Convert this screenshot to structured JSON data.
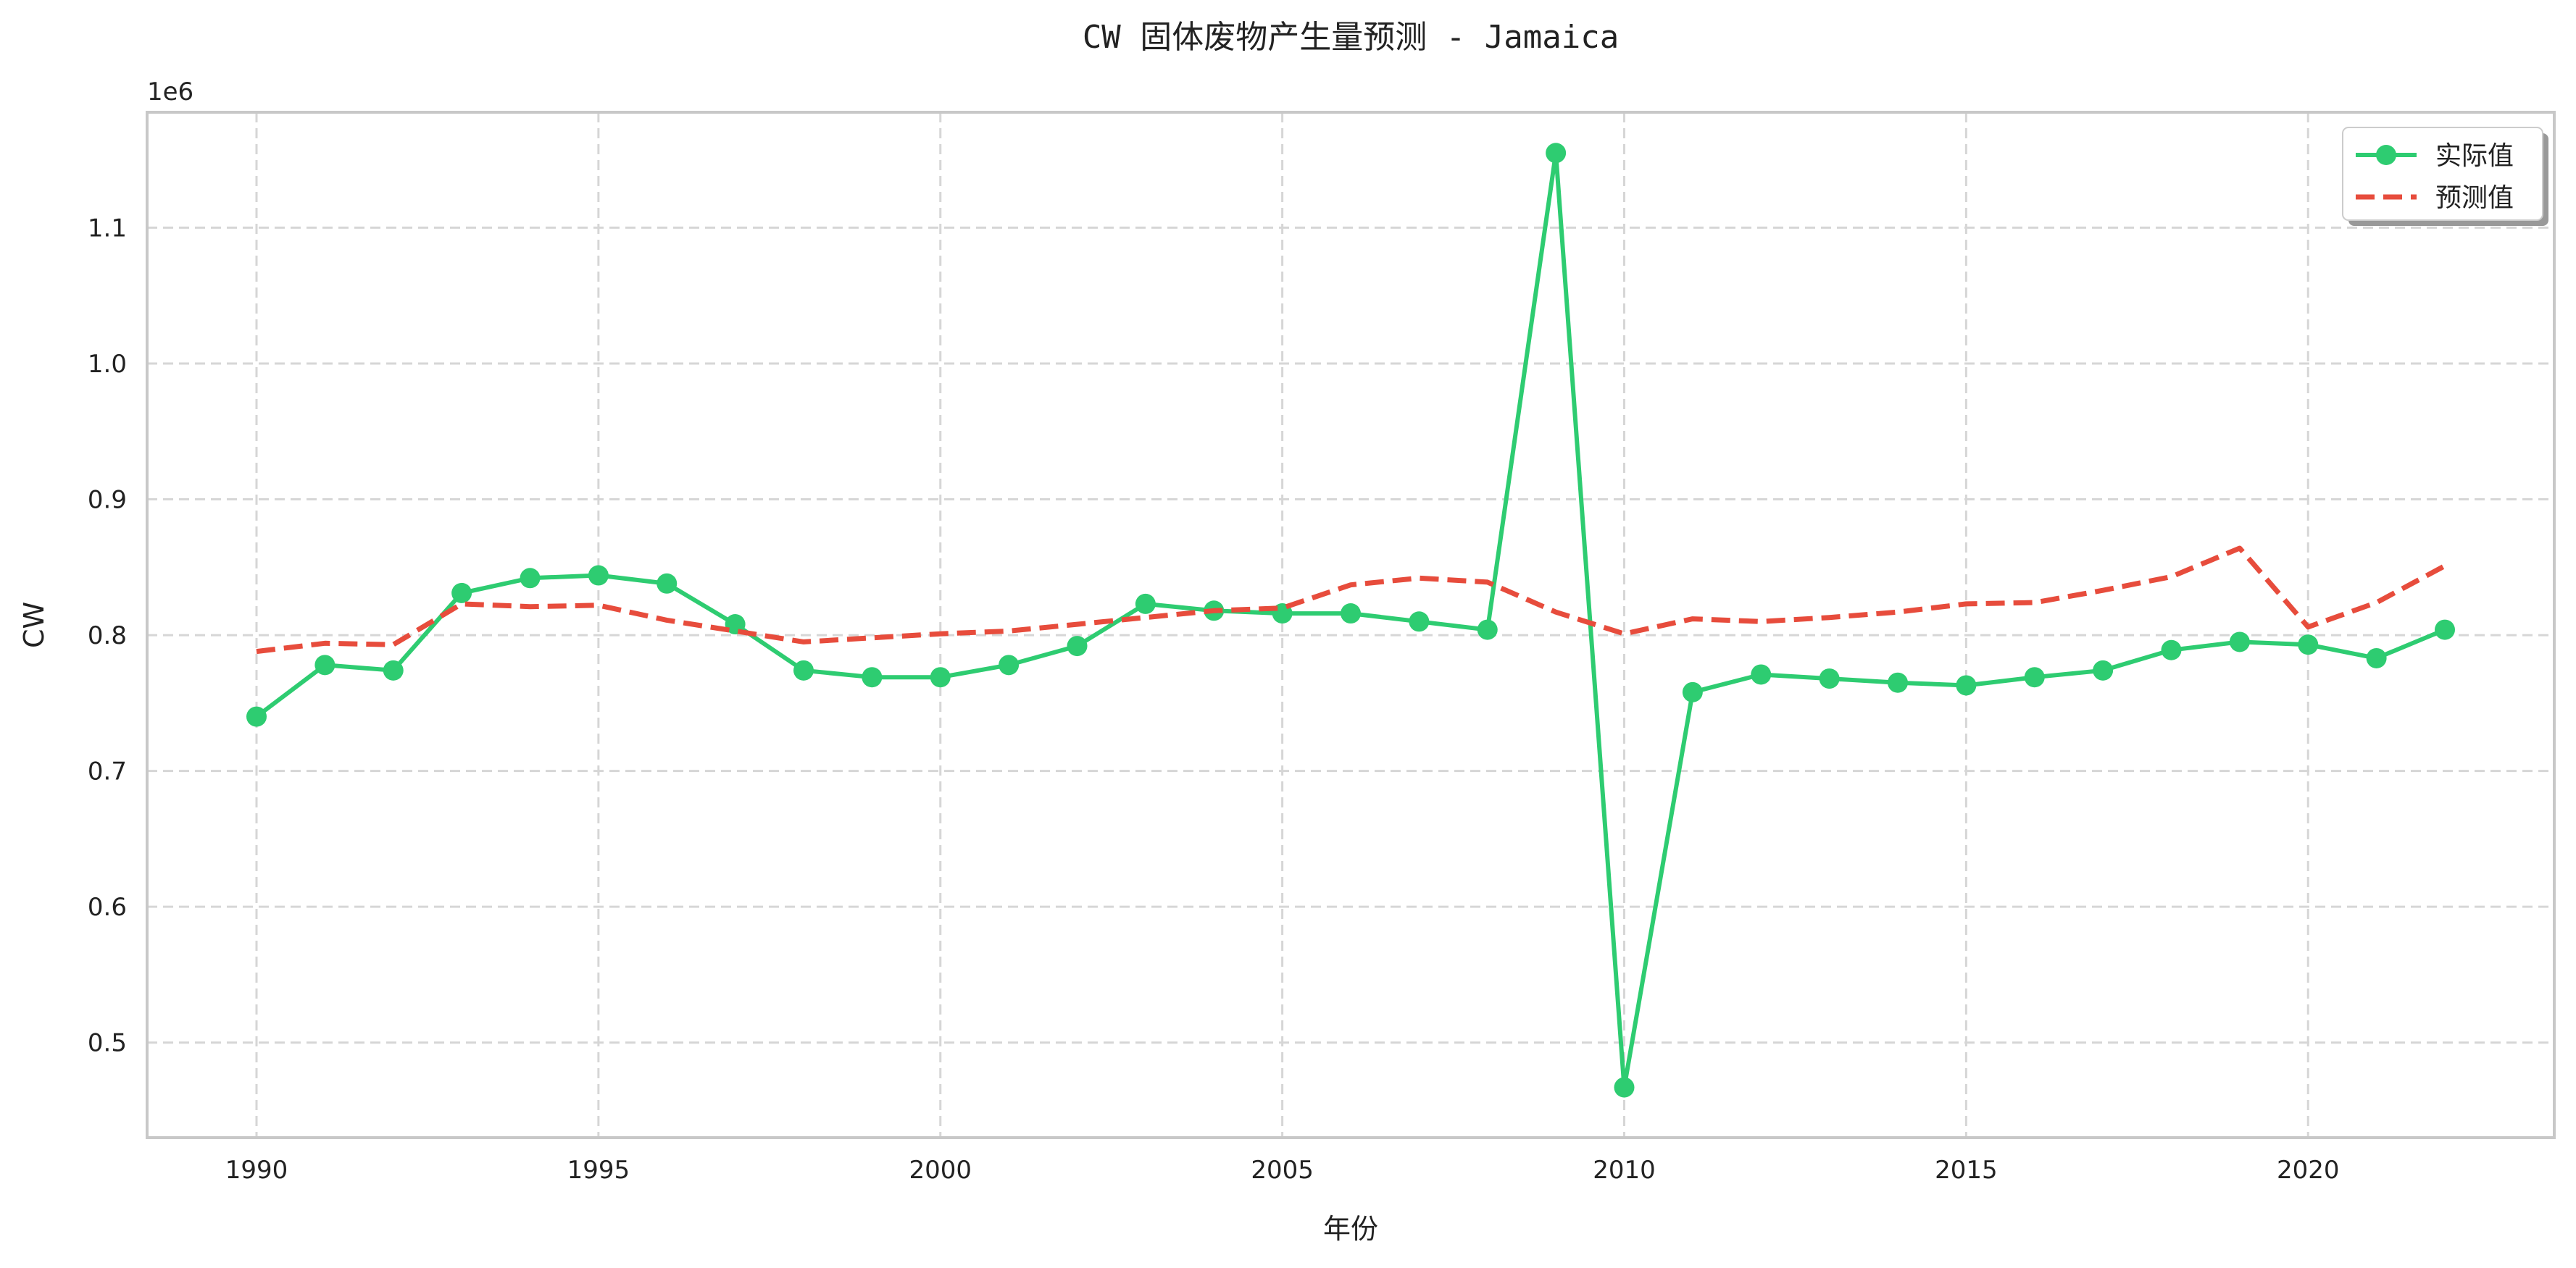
{
  "chart_data": {
    "type": "line",
    "title": "CW 固体废物产生量预测 - Jamaica",
    "xlabel": "年份",
    "ylabel": "CW",
    "offset_label": "1e6",
    "xlim": [
      1988.4,
      2023.6
    ],
    "ylim": [
      430000,
      1185000
    ],
    "x_ticks": [
      1990,
      1995,
      2000,
      2005,
      2010,
      2015,
      2020
    ],
    "y_ticks": [
      {
        "value": 500000,
        "label": "0.5"
      },
      {
        "value": 600000,
        "label": "0.6"
      },
      {
        "value": 700000,
        "label": "0.7"
      },
      {
        "value": 800000,
        "label": "0.8"
      },
      {
        "value": 900000,
        "label": "0.9"
      },
      {
        "value": 1000000,
        "label": "1.0"
      },
      {
        "value": 1100000,
        "label": "1.1"
      }
    ],
    "grid": true,
    "legend_position": "top-right",
    "x": [
      1990,
      1991,
      1992,
      1993,
      1994,
      1995,
      1996,
      1997,
      1998,
      1999,
      2000,
      2001,
      2002,
      2003,
      2004,
      2005,
      2006,
      2007,
      2008,
      2009,
      2010,
      2011,
      2012,
      2013,
      2014,
      2015,
      2016,
      2017,
      2018,
      2019,
      2020,
      2021,
      2022
    ],
    "series": [
      {
        "name": "实际值",
        "style": "solid-marker",
        "color": "#2ecc71",
        "values": [
          740000,
          778000,
          774000,
          831000,
          842000,
          844000,
          838000,
          808000,
          774000,
          769000,
          769000,
          778000,
          792000,
          823000,
          818000,
          816000,
          816000,
          810000,
          804000,
          1155000,
          467000,
          758000,
          771000,
          768000,
          765000,
          763000,
          769000,
          774000,
          789000,
          795000,
          793000,
          783000,
          804000
        ]
      },
      {
        "name": "预测值",
        "style": "dashed",
        "color": "#e74c3c",
        "values": [
          788000,
          794000,
          793000,
          823000,
          821000,
          822000,
          811000,
          803000,
          795000,
          798000,
          801000,
          803000,
          808000,
          813000,
          818000,
          820000,
          837000,
          842000,
          839000,
          817000,
          801000,
          812000,
          810000,
          813000,
          817000,
          823000,
          824000,
          833000,
          843000,
          864000,
          806000,
          824000,
          851000
        ]
      }
    ]
  }
}
